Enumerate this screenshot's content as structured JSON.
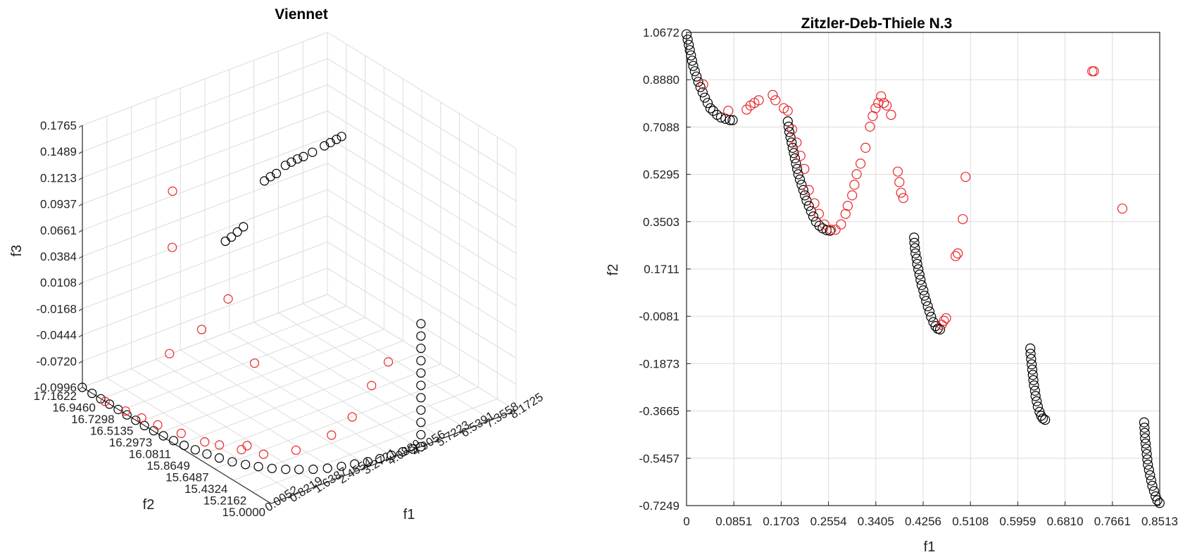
{
  "colors": {
    "front": "#000000",
    "outliers": "#e8262a",
    "grid": "#dcdcdc",
    "axes": "#262626"
  },
  "chart_data": [
    {
      "type": "scatter",
      "projection": "3d",
      "title": "Viennet",
      "xlabel": "f1",
      "ylabel": "f2",
      "zlabel": "f3",
      "xticks": [
        "0.0052",
        "0.8219",
        "1.6387",
        "2.4554",
        "3.2721",
        "4.0889",
        "4.9056",
        "5.7223",
        "6.5391",
        "7.3558",
        "8.1725"
      ],
      "yticks": [
        "15.0000",
        "15.2162",
        "15.4324",
        "15.6487",
        "15.8649",
        "16.0811",
        "16.2973",
        "16.5135",
        "16.7298",
        "16.9460",
        "17.1622"
      ],
      "zticks": [
        "-0.0996",
        "-0.0720",
        "-0.0444",
        "-0.0168",
        "0.0108",
        "0.0384",
        "0.0661",
        "0.0937",
        "0.1213",
        "0.1489",
        "0.1765"
      ],
      "xlim": [
        0.0052,
        8.1725
      ],
      "ylim": [
        15.0,
        17.1622
      ],
      "zlim": [
        -0.0996,
        0.1765
      ],
      "grid": true,
      "series": [
        {
          "color": "#000000",
          "marker": "circle",
          "points": [
            [
              0.0,
              17.1622,
              -0.0996
            ],
            [
              0.0,
              17.05,
              -0.0996
            ],
            [
              0.0,
              16.95,
              -0.0996
            ],
            [
              0.0,
              16.85,
              -0.0996
            ],
            [
              0.0,
              16.75,
              -0.0996
            ],
            [
              0.0,
              16.65,
              -0.0996
            ],
            [
              0.0,
              16.55,
              -0.0996
            ],
            [
              0.0,
              16.45,
              -0.0996
            ],
            [
              0.02,
              16.35,
              -0.0996
            ],
            [
              0.05,
              16.25,
              -0.0996
            ],
            [
              0.1,
              16.15,
              -0.0996
            ],
            [
              0.16,
              16.05,
              -0.0996
            ],
            [
              0.24,
              15.95,
              -0.0996
            ],
            [
              0.34,
              15.85,
              -0.0996
            ],
            [
              0.46,
              15.75,
              -0.0996
            ],
            [
              0.6,
              15.65,
              -0.0996
            ],
            [
              0.78,
              15.56,
              -0.0996
            ],
            [
              0.98,
              15.48,
              -0.0996
            ],
            [
              1.2,
              15.4,
              -0.0996
            ],
            [
              1.45,
              15.33,
              -0.0996
            ],
            [
              1.72,
              15.27,
              -0.0996
            ],
            [
              2.02,
              15.21,
              -0.0996
            ],
            [
              2.35,
              15.16,
              -0.0996
            ],
            [
              2.7,
              15.12,
              -0.0996
            ],
            [
              3.05,
              15.09,
              -0.0996
            ],
            [
              3.4,
              15.06,
              -0.0996
            ],
            [
              3.75,
              15.04,
              -0.0996
            ],
            [
              4.1,
              15.03,
              -0.0996
            ],
            [
              4.45,
              15.02,
              -0.0996
            ],
            [
              4.75,
              15.01,
              -0.0996
            ],
            [
              5.0,
              15.0,
              -0.0996
            ],
            [
              5.0,
              15.0,
              -0.087
            ],
            [
              5.0,
              15.0,
              -0.074
            ],
            [
              5.0,
              15.0,
              -0.061
            ],
            [
              5.0,
              15.0,
              -0.048
            ],
            [
              5.0,
              15.0,
              -0.035
            ],
            [
              5.0,
              15.0,
              -0.022
            ],
            [
              5.0,
              15.0,
              -0.009
            ],
            [
              5.0,
              15.0,
              0.004
            ],
            [
              5.0,
              15.0,
              0.017
            ],
            [
              5.0,
              15.0,
              0.03
            ],
            [
              4.3,
              17.0,
              0.012
            ],
            [
              4.5,
              17.0,
              0.014
            ],
            [
              4.7,
              17.0,
              0.017
            ],
            [
              4.9,
              17.0,
              0.02
            ],
            [
              5.6,
              17.0,
              0.06
            ],
            [
              5.8,
              17.0,
              0.062
            ],
            [
              6.0,
              17.0,
              0.063
            ],
            [
              6.3,
              17.0,
              0.068
            ],
            [
              6.5,
              17.0,
              0.069
            ],
            [
              6.7,
              17.0,
              0.07
            ],
            [
              6.9,
              17.0,
              0.07
            ],
            [
              7.2,
              17.0,
              0.071
            ],
            [
              7.6,
              17.0,
              0.073
            ],
            [
              7.8,
              17.0,
              0.074
            ],
            [
              8.0,
              17.0,
              0.075
            ],
            [
              8.1725,
              17.0,
              0.076
            ]
          ]
        },
        {
          "color": "#e8262a",
          "marker": "circle",
          "points": [
            [
              0.5,
              16.3,
              0.15
            ],
            [
              0.2,
              16.2,
              0.1
            ],
            [
              0.9,
              15.8,
              0.06
            ],
            [
              0.6,
              16.0,
              0.02
            ],
            [
              1.2,
              15.6,
              0.0
            ],
            [
              0.4,
              16.3,
              -0.02
            ],
            [
              0.0,
              16.9,
              -0.0996
            ],
            [
              0.1,
              16.7,
              -0.0996
            ],
            [
              0.2,
              16.55,
              -0.0996
            ],
            [
              0.3,
              16.4,
              -0.0996
            ],
            [
              0.5,
              16.2,
              -0.0996
            ],
            [
              0.7,
              16.0,
              -0.0996
            ],
            [
              0.9,
              15.9,
              -0.0996
            ],
            [
              1.2,
              15.75,
              -0.0996
            ],
            [
              1.5,
              15.6,
              -0.0996
            ],
            [
              1.3,
              15.72,
              -0.095
            ],
            [
              2.0,
              15.4,
              -0.09
            ],
            [
              2.6,
              15.2,
              -0.07
            ],
            [
              3.0,
              15.1,
              -0.05
            ],
            [
              3.5,
              15.05,
              -0.02
            ],
            [
              4.0,
              15.03,
              0.0
            ]
          ]
        }
      ]
    },
    {
      "type": "scatter",
      "title": "Zitzler-Deb-Thiele N.3",
      "xlabel": "f1",
      "ylabel": "f2",
      "xticks": [
        "0",
        "0.0851",
        "0.1703",
        "0.2554",
        "0.3405",
        "0.4256",
        "0.5108",
        "0.5959",
        "0.6810",
        "0.7661",
        "0.8513"
      ],
      "yticks": [
        "-0.7249",
        "-0.5457",
        "-0.3665",
        "-0.1873",
        "-0.0081",
        "0.1711",
        "0.3503",
        "0.5295",
        "0.7088",
        "0.8880",
        "1.0672"
      ],
      "xlim": [
        0,
        0.8513
      ],
      "ylim": [
        -0.7249,
        1.0672
      ],
      "grid": true,
      "series": [
        {
          "color": "#000000",
          "marker": "circle",
          "points": [
            [
              0.0,
              1.06
            ],
            [
              0.002,
              1.04
            ],
            [
              0.004,
              1.02
            ],
            [
              0.006,
              1.0
            ],
            [
              0.008,
              0.98
            ],
            [
              0.01,
              0.96
            ],
            [
              0.012,
              0.94
            ],
            [
              0.015,
              0.92
            ],
            [
              0.018,
              0.9
            ],
            [
              0.021,
              0.88
            ],
            [
              0.025,
              0.86
            ],
            [
              0.029,
              0.84
            ],
            [
              0.033,
              0.82
            ],
            [
              0.038,
              0.8
            ],
            [
              0.043,
              0.78
            ],
            [
              0.048,
              0.77
            ],
            [
              0.055,
              0.755
            ],
            [
              0.062,
              0.745
            ],
            [
              0.07,
              0.74
            ],
            [
              0.078,
              0.735
            ],
            [
              0.083,
              0.735
            ],
            [
              0.1822,
              0.73
            ],
            [
              0.1835,
              0.71
            ],
            [
              0.185,
              0.69
            ],
            [
              0.187,
              0.67
            ],
            [
              0.189,
              0.65
            ],
            [
              0.191,
              0.63
            ],
            [
              0.193,
              0.61
            ],
            [
              0.195,
              0.59
            ],
            [
              0.197,
              0.57
            ],
            [
              0.199,
              0.55
            ],
            [
              0.201,
              0.53
            ],
            [
              0.204,
              0.51
            ],
            [
              0.207,
              0.49
            ],
            [
              0.21,
              0.47
            ],
            [
              0.213,
              0.45
            ],
            [
              0.216,
              0.43
            ],
            [
              0.22,
              0.41
            ],
            [
              0.224,
              0.39
            ],
            [
              0.228,
              0.37
            ],
            [
              0.233,
              0.35
            ],
            [
              0.239,
              0.335
            ],
            [
              0.245,
              0.325
            ],
            [
              0.252,
              0.318
            ],
            [
              0.258,
              0.316
            ],
            [
              0.4094,
              0.29
            ],
            [
              0.41,
              0.27
            ],
            [
              0.411,
              0.25
            ],
            [
              0.412,
              0.23
            ],
            [
              0.414,
              0.21
            ],
            [
              0.415,
              0.19
            ],
            [
              0.417,
              0.17
            ],
            [
              0.419,
              0.15
            ],
            [
              0.421,
              0.13
            ],
            [
              0.423,
              0.11
            ],
            [
              0.426,
              0.09
            ],
            [
              0.428,
              0.07
            ],
            [
              0.431,
              0.05
            ],
            [
              0.434,
              0.03
            ],
            [
              0.437,
              0.01
            ],
            [
              0.44,
              -0.01
            ],
            [
              0.444,
              -0.03
            ],
            [
              0.448,
              -0.045
            ],
            [
              0.452,
              -0.055
            ],
            [
              0.456,
              -0.058
            ],
            [
              0.6184,
              -0.13
            ],
            [
              0.619,
              -0.15
            ],
            [
              0.62,
              -0.17
            ],
            [
              0.621,
              -0.19
            ],
            [
              0.622,
              -0.21
            ],
            [
              0.623,
              -0.23
            ],
            [
              0.624,
              -0.25
            ],
            [
              0.625,
              -0.27
            ],
            [
              0.627,
              -0.29
            ],
            [
              0.628,
              -0.31
            ],
            [
              0.63,
              -0.33
            ],
            [
              0.632,
              -0.35
            ],
            [
              0.635,
              -0.37
            ],
            [
              0.638,
              -0.385
            ],
            [
              0.641,
              -0.395
            ],
            [
              0.645,
              -0.4
            ],
            [
              0.8233,
              -0.41
            ],
            [
              0.8238,
              -0.43
            ],
            [
              0.8245,
              -0.45
            ],
            [
              0.825,
              -0.47
            ],
            [
              0.826,
              -0.49
            ],
            [
              0.827,
              -0.51
            ],
            [
              0.828,
              -0.53
            ],
            [
              0.829,
              -0.55
            ],
            [
              0.83,
              -0.57
            ],
            [
              0.832,
              -0.59
            ],
            [
              0.834,
              -0.61
            ],
            [
              0.836,
              -0.63
            ],
            [
              0.838,
              -0.65
            ],
            [
              0.841,
              -0.67
            ],
            [
              0.844,
              -0.69
            ],
            [
              0.847,
              -0.705
            ],
            [
              0.851,
              -0.715
            ]
          ]
        },
        {
          "color": "#e8262a",
          "marker": "circle",
          "points": [
            [
              0.03,
              0.87
            ],
            [
              0.075,
              0.77
            ],
            [
              0.108,
              0.775
            ],
            [
              0.115,
              0.79
            ],
            [
              0.122,
              0.8
            ],
            [
              0.13,
              0.81
            ],
            [
              0.155,
              0.83
            ],
            [
              0.16,
              0.81
            ],
            [
              0.175,
              0.78
            ],
            [
              0.182,
              0.77
            ],
            [
              0.19,
              0.7
            ],
            [
              0.198,
              0.65
            ],
            [
              0.205,
              0.6
            ],
            [
              0.212,
              0.55
            ],
            [
              0.22,
              0.47
            ],
            [
              0.23,
              0.42
            ],
            [
              0.238,
              0.38
            ],
            [
              0.248,
              0.34
            ],
            [
              0.26,
              0.32
            ],
            [
              0.268,
              0.32
            ],
            [
              0.278,
              0.34
            ],
            [
              0.286,
              0.38
            ],
            [
              0.29,
              0.41
            ],
            [
              0.298,
              0.45
            ],
            [
              0.302,
              0.49
            ],
            [
              0.306,
              0.53
            ],
            [
              0.313,
              0.57
            ],
            [
              0.322,
              0.63
            ],
            [
              0.33,
              0.71
            ],
            [
              0.335,
              0.75
            ],
            [
              0.34,
              0.78
            ],
            [
              0.345,
              0.8
            ],
            [
              0.35,
              0.825
            ],
            [
              0.355,
              0.8
            ],
            [
              0.36,
              0.79
            ],
            [
              0.368,
              0.755
            ],
            [
              0.38,
              0.54
            ],
            [
              0.383,
              0.5
            ],
            [
              0.386,
              0.46
            ],
            [
              0.39,
              0.44
            ],
            [
              0.459,
              -0.04
            ],
            [
              0.463,
              -0.025
            ],
            [
              0.467,
              -0.015
            ],
            [
              0.484,
              0.22
            ],
            [
              0.488,
              0.23
            ],
            [
              0.497,
              0.36
            ],
            [
              0.502,
              0.52
            ],
            [
              0.73,
              0.92
            ],
            [
              0.733,
              0.92
            ],
            [
              0.784,
              0.4
            ]
          ]
        }
      ]
    }
  ]
}
